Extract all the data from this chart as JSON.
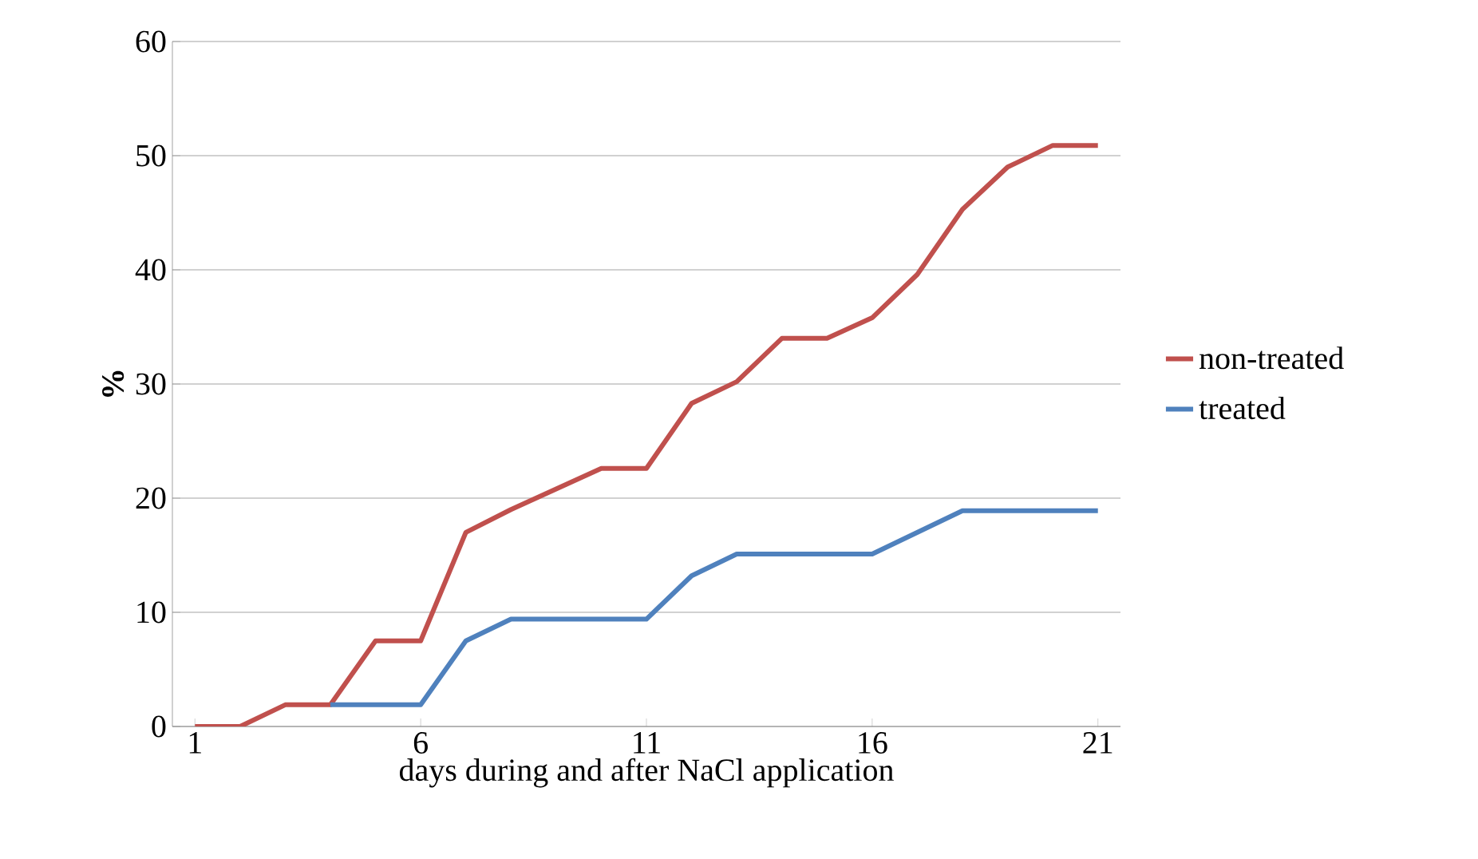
{
  "chart_data": {
    "type": "line",
    "xlabel": "days  during and after NaCl application",
    "ylabel": "%",
    "x": [
      1,
      2,
      3,
      4,
      5,
      6,
      7,
      8,
      9,
      10,
      11,
      12,
      13,
      14,
      15,
      16,
      17,
      18,
      19,
      20,
      21
    ],
    "xlim": [
      0.5,
      21.5
    ],
    "xticks": [
      1,
      6,
      11,
      16,
      21
    ],
    "ylim": [
      0,
      60
    ],
    "yticks": [
      0,
      10,
      20,
      30,
      40,
      50,
      60
    ],
    "grid": "y",
    "legend": "right",
    "marker": "none",
    "line_style": "solid",
    "series": [
      {
        "name": "non-treated",
        "color": "#c0504d",
        "values": [
          0,
          0,
          1.9,
          1.9,
          7.5,
          7.5,
          17,
          19,
          20.8,
          22.6,
          22.6,
          28.3,
          30.2,
          34,
          34,
          35.8,
          39.6,
          45.3,
          49,
          50.9,
          50.9
        ]
      },
      {
        "name": "treated",
        "color": "#4f81bd",
        "values": [
          null,
          null,
          null,
          1.9,
          1.9,
          1.9,
          7.5,
          9.4,
          9.4,
          9.4,
          9.4,
          13.2,
          15.1,
          15.1,
          15.1,
          15.1,
          17,
          18.9,
          18.9,
          18.9,
          18.9
        ]
      }
    ]
  }
}
